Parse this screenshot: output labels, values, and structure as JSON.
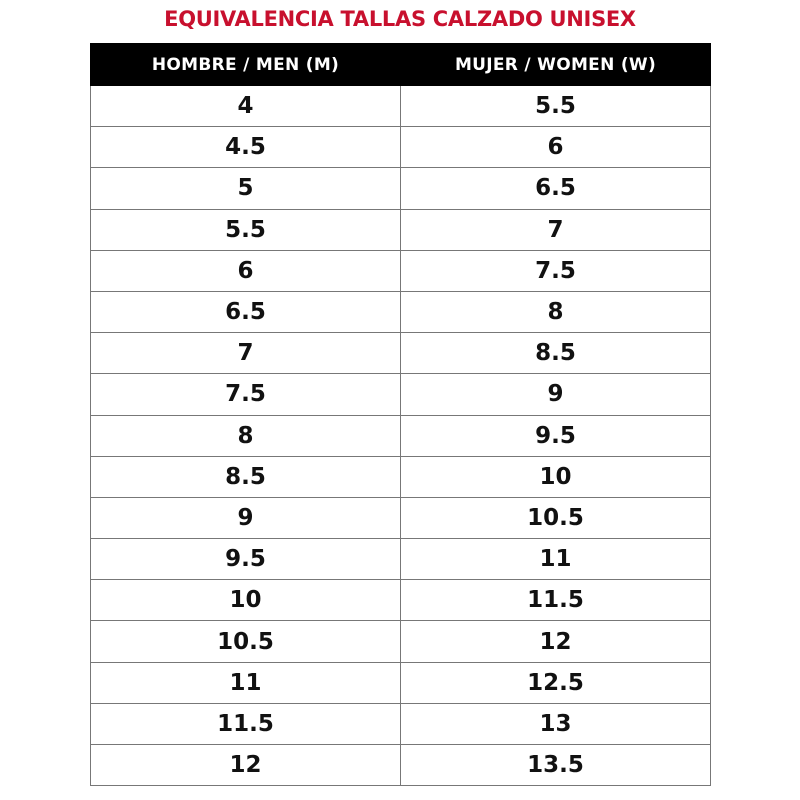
{
  "title": "EQUIVALENCIA TALLAS CALZADO UNISEX",
  "colors": {
    "title": "#c8102e",
    "header_bg": "#000000",
    "header_text": "#ffffff"
  },
  "table": {
    "headers": [
      "HOMBRE / MEN (M)",
      "MUJER / WOMEN (W)"
    ],
    "rows": [
      [
        "4",
        "5.5"
      ],
      [
        "4.5",
        "6"
      ],
      [
        "5",
        "6.5"
      ],
      [
        "5.5",
        "7"
      ],
      [
        "6",
        "7.5"
      ],
      [
        "6.5",
        "8"
      ],
      [
        "7",
        "8.5"
      ],
      [
        "7.5",
        "9"
      ],
      [
        "8",
        "9.5"
      ],
      [
        "8.5",
        "10"
      ],
      [
        "9",
        "10.5"
      ],
      [
        "9.5",
        "11"
      ],
      [
        "10",
        "11.5"
      ],
      [
        "10.5",
        "12"
      ],
      [
        "11",
        "12.5"
      ],
      [
        "11.5",
        "13"
      ],
      [
        "12",
        "13.5"
      ]
    ]
  }
}
